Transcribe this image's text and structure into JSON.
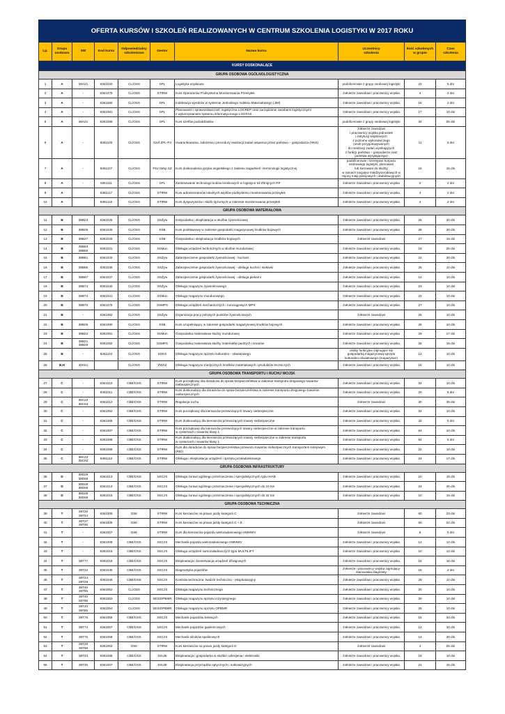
{
  "title": "OFERTA KURSÓW I SZKOLEŃ REALIZOWANYCH W CENTRUM SZKOLENIA LOGISTYKI W 2017 ROKU",
  "columns": [
    "Lp.",
    "Grupa\nosobowa",
    "SW",
    "Kod kursu",
    "Odpowiedzialny\nszkoleniowo",
    "Gestor",
    "Nazwa kursu",
    "Uczestnicy\nszkolenia",
    "Ilość szkolonych\nw grupie",
    "Czas\nszkolenia"
  ],
  "category": "KURSY DOSKONALĄCE",
  "colors": {
    "navy": "#0b2a66",
    "header_yellow": "#ffc000",
    "group_grey": "#d9d9d9"
  },
  "sections": [
    {
      "title": "GRUPA OSOBOWA OGÓLNOLOGISTYCZNA",
      "rows": [
        [
          "1",
          "A",
          "38A21",
          "8361020",
          "CL/OSS",
          "SPL",
          "Logistyka wojskowa",
          "podoficerowie z grupy osobowej logistyki",
          "22",
          "5 dni"
        ],
        [
          "2",
          "A",
          "-",
          "8361079",
          "CL/OSS",
          "STIRW",
          "Kurs Operatorów Podsystemu Monitorowania Przesyłek",
          "żołnierze zawodowi i pracownicy wojska",
          "4",
          "2 dni"
        ],
        [
          "3",
          "A",
          "-",
          "8361080",
          "CL/OSS",
          "SPL",
          "Indeksacja wyrobów w systemie Jednolitego Indeksu Materiałowego (JIM)",
          "żołnierze zawodowi i pracownicy wojska",
          "18",
          "2 dni"
        ],
        [
          "4",
          "A",
          "-",
          "8361081",
          "CL/OSS",
          "SPL",
          "Planowanie i sprawozdawczość logistyczna LOGREP oraz zarządzanie zasobami logistycznymi\nz wykorzystaniem systemu informatycznego LOGFAS",
          "żołnierze zawodowi i pracownicy wojska",
          "17",
          "10 dni"
        ],
        [
          "5",
          "A",
          "38A21",
          "8361089",
          "CL/OSS",
          "SPL",
          "Kurs szefów pododdziałów",
          "podoficerowie z grupy osobowej logistyki",
          "34",
          "25 dni"
        ],
        [
          "6",
          "A",
          "-",
          "8361100",
          "CL/OSS",
          "Szef ZPL-P4",
          "Uwarunkowania, założenia i procedury realizacji zadań wsparcia przez państwo – gospodarza (HNS)",
          "żołnierze zawodowi\ni pracownicy wojska jednostek\ni instytucji wojskowych\nz poziomu wykonawczego\n(osób przygotowywanych\ndo realizacji zadań wynikających\nz funkcji państwa – gospodarza oraz\npaństwa wysyłającego)",
          "11",
          "5 dni"
        ],
        [
          "7",
          "A",
          "-",
          "8361107",
          "CL/OSS",
          "PSz IWsp SZ",
          "Kurs doskonalenia języka angielskiego z zakresu zagadnień i terminologii logistycznej",
          "podoficerowie i szeregowi korpusu\nosobowego logistyki, planowani\nlub kierowani do służby\nw ramach inicjatyw międzynarodowych w\nrejony misji pokojowych i stabilizacyjnych",
          "16",
          "15 dni"
        ],
        [
          "8",
          "A",
          "-",
          "8361111",
          "CL/OSS",
          "SPL",
          "Zastosowanie technologii kodów kreskowych w logistyce Sił Zbrojnych RP",
          "żołnierze zawodowi i pracownicy wojska",
          "2",
          "2 dni"
        ],
        [
          "9",
          "A",
          "",
          "8361117",
          "CL/OSS",
          "STIRW",
          "Kurs administratorów lokalnych węzłów podsystemu monitorowania przesyłek",
          "żołnierze zawodowi i pracownicy wojska",
          "4",
          "2 dni"
        ],
        [
          "10",
          "A",
          "",
          "8361118",
          "CL/OSS",
          "STIRW",
          "Kurs dyspozytorów i służb dyżurnych w zakresie monitorowania przesyłek",
          "żołnierze zawodowi i pracownicy wojska",
          "4",
          "2 dni"
        ]
      ]
    },
    {
      "title": "GRUPA OSOBOWA MATERIAŁOWA",
      "rows": [
        [
          "11",
          "B",
          "38B23",
          "8361025",
          "CL/OSS",
          "SSŻyw",
          "Gospodarka i eksploatacja w służbie żywnościowej",
          "żołnierze zawodowi i pracownicy wojska",
          "25",
          "20 dni"
        ],
        [
          "12",
          "B",
          "38B25",
          "8361026",
          "CL/OSS",
          "SŚB",
          "Kurs podstawowy w zakresie gospodarki magazynowej środków bojowych",
          "żołnierze zawodowi i pracownicy wojska",
          "28",
          "20 dni"
        ],
        [
          "13",
          "B",
          "38B27",
          "8361028",
          "CL/OSS",
          "SŚB",
          "Gospodarka i eksploatacja środków bojowych",
          "żołnierze zawodowi",
          "27",
          "15 dni"
        ],
        [
          "14",
          "B",
          "38B63\n38B68",
          "8361031",
          "CL/OSS",
          "SSMun",
          "Obsługa urządzeń technicznych w służbie mundurowej",
          "żołnierze zawodowi i pracownicy wojska",
          "19",
          "25 dni"
        ],
        [
          "15",
          "B",
          "38B61",
          "8361033",
          "CL/OSS",
          "SSŻyw",
          "Zabezpieczenie gospodarki żywnościowej - kucharz",
          "żołnierze zawodowi i pracownicy wojska",
          "22",
          "20 dni"
        ],
        [
          "16",
          "B",
          "38B65",
          "8361036",
          "CL/OSS",
          "SSŻyw",
          "Zabezpieczenie gospodarki żywnościowej - obsługa kuchni i stołówki",
          "żołnierze zawodowi i pracownicy wojska",
          "26",
          "10 dni"
        ],
        [
          "17",
          "B",
          "38B67",
          "8361037",
          "CL/OSS",
          "SSŻyw",
          "Zabezpieczenie gospodarki żywnościowej - obsługa piekarni",
          "żołnierze zawodowi i pracownicy wojska",
          "14",
          "10 dni"
        ],
        [
          "18",
          "B",
          "38B74",
          "8361040",
          "CL/OSS",
          "SSŻyw",
          "Obsługa magazynu żywnościowego",
          "żołnierze zawodowi i pracownicy wojska",
          "23",
          "10 dni"
        ],
        [
          "19",
          "B",
          "38B74",
          "8361041",
          "CL/OSS",
          "SSMun",
          "Obsługa magazynu mundurowego",
          "żołnierze zawodowi i pracownicy wojska",
          "22",
          "10 dni"
        ],
        [
          "20",
          "B",
          "38B70",
          "8361076",
          "CL/OSS",
          "SSMPS",
          "Obsługa urządzeń mechanicznych i rurociągowych MPS",
          "żołnierze zawodowi i pracownicy wojska",
          "27",
          "10 dni"
        ],
        [
          "21",
          "B",
          "-",
          "8361082",
          "CL/OSS",
          "SSŻyw",
          "Organizacja pracy polowych punktów żywnościowych",
          "żołnierze zawodowi",
          "25",
          "10 dni"
        ],
        [
          "22",
          "B",
          "38B25",
          "8361090",
          "CL/OSS",
          "SŚB",
          "Kurs uzupełniający w zakresie gospodarki magazynowej środków bojowych",
          "żołnierze zawodowi i pracownicy wojska",
          "26",
          "10 dni"
        ],
        [
          "23",
          "B",
          "38B22",
          "8361091",
          "CL/OSS",
          "SSMun",
          "Gospodarka materiałowa służby mundurowej",
          "żołnierze zawodowi i pracownicy wojska",
          "29",
          "17 dni"
        ],
        [
          "24",
          "B",
          "38B21\n38B28",
          "8361092",
          "CL/OSS",
          "SSMPS",
          "Gospodarka materiałowa służby materiałów pędnych i smarów",
          "żołnierze zawodowi i pracownicy wojska",
          "25",
          "15 dni"
        ],
        [
          "25",
          "B",
          "-",
          "8361104",
          "CL/OSS",
          "SOKS",
          "Obsługa magazynu sprzętu kulturalno - oświatowego",
          "osoby funkcyjne zajmujące się\ngospodarką magazynową sprzętu\nkulturalno-oświatowego (magazynier)",
          "12",
          "10 dni"
        ],
        [
          "26",
          "B,H",
          "40H21",
          "",
          "CL/OSS",
          "ZWSZ",
          "Obsługa magazynu medycznych środków materiałowych i produktów leczniczych",
          "żołnierze zawodowi i pracownicy wojska",
          "15",
          "10 dni"
        ]
      ]
    },
    {
      "title": "GRUPA OSOBOWA TRANSPORTU I RUCHU WOJSK",
      "rows": [
        [
          "27",
          "C",
          "-",
          "8361010",
          "CBE/OSS",
          "STIRW",
          "Kurs początkowy dla doradców do spraw bezpieczeństwa w zakresie transportu drogowego towarów\nniebezpiecznych",
          "żołnierze zawodowi i pracownicy wojska",
          "32",
          "10 dni"
        ],
        [
          "28",
          "C",
          "-",
          "8361011",
          "CBE/OSS",
          "STIRW",
          "Kurs doskonalący dla doradców do spraw bezpieczeństwa w zakresie transportu drogowego towarów\nniebezpiecznych",
          "żołnierze zawodowi i pracownicy wojska",
          "20",
          "5 dni"
        ],
        [
          "29",
          "C",
          "38C22\n38C63",
          "8361012",
          "CBE/OSS",
          "STIRW",
          "Regulacja ruchu",
          "żołnierze zawodowi",
          "30",
          "35 dni"
        ],
        [
          "30",
          "C",
          "-",
          "8361064",
          "CBE/OSS",
          "STIRW",
          "Kurs początkowy dla kierowców przewożących towary niebezpieczne",
          "żołnierze zawodowi i pracownicy wojska",
          "32",
          "10 dni"
        ],
        [
          "31",
          "C",
          "-",
          "8361065",
          "CBE/OSS",
          "STIRW",
          "Kurs doskonalący dla kierowców przewożących towary niebezpieczne",
          "żołnierze zawodowi i pracownicy wojska",
          "32",
          "5 dni"
        ],
        [
          "32",
          "C",
          "-",
          "8361087",
          "CBE/OSS",
          "STIRW",
          "Kurs początkowy dla kierowców przewożących towary niebezpieczne w zakresie transportu\nw cysternach i towarów klasy 1",
          "żołnierze zawodowi i pracownicy wojska",
          "64",
          "10 dni"
        ],
        [
          "33",
          "C",
          "-",
          "8361088",
          "CBE/OSS",
          "STIRW",
          "Kurs doskonalący dla kierowców przewożących towary niebezpieczne w zakresie transportu\nw cysternach i towarów klasy 1",
          "żołnierze zawodowi i pracownicy wojska",
          "64",
          "5 dni"
        ],
        [
          "34",
          "C",
          "-",
          "8361099",
          "CBE/OSS",
          "STIRW",
          "Kurs dla doradców do spraw bezpieczeństwa przewozu towarów niebezpiecznych transportem kolejowym\n(RID)",
          "żołnierze zawodowi i pracownicy wojska",
          "22",
          "10 dni"
        ],
        [
          "35",
          "C",
          "38C23\n38C62",
          "8361113",
          "CBE/OSS",
          "STIRW",
          "Obsługa i eksploatacja urządzeń i sprzętu przeładunkowego",
          "żołnierze zawodowi i pracownicy wojska",
          "24",
          "17 dni"
        ]
      ]
    },
    {
      "title": "GRUPA OSOBOWA INFRASTRUKTURY",
      "rows": [
        [
          "36",
          "D",
          "38D28\n38D69",
          "8361013",
          "CBE/OSS",
          "SSCzS",
          "Obsługa żurawi ogólnego przeznaczenia i specjalistycznych typu HIAB",
          "żołnierze zawodowi i pracownicy wojska",
          "10",
          "15 dni"
        ],
        [
          "37",
          "D",
          "38D28\n38D69",
          "8361014",
          "CBE/OSS",
          "SSCzS",
          "Obsługa żurawi ogólnego przeznaczenia i specjalistycznych do 10 ton",
          "żołnierze zawodowi i pracownicy wojska",
          "24",
          "26 dni"
        ],
        [
          "38",
          "D",
          "38D28\n38D69",
          "8361015",
          "CBE/OSS",
          "SSCzS",
          "Obsługa żurawi ogólnego przeznaczenia i specjalistycznych do 32 ton",
          "żołnierze zawodowi i pracownicy wojska",
          "10",
          "15 dni"
        ]
      ]
    },
    {
      "title": "GRUPA OSOBOWA TECHNICZNA",
      "rows": [
        [
          "39",
          "T",
          "38T26\n38T64",
          "8361005",
          "OSK",
          "STIRW",
          "Kurs kierowców na prawo jazdy kategorii C",
          "żołnierze zawodowi",
          "60",
          "23 dni"
        ],
        [
          "40",
          "T",
          "38T27\n38T65",
          "8361006",
          "OSK",
          "STIRW",
          "Kurs kierowców na prawo jazdy kategorii C + E",
          "żołnierze zawodowi",
          "50",
          "22 dni"
        ],
        [
          "41",
          "T",
          "-",
          "8361007",
          "OSK",
          "STIRW",
          "Kurs dla kierowców pojazdu wielozadaniowego HMMWV",
          "żołnierze zawodowi",
          "6",
          "5 dni"
        ],
        [
          "42",
          "T",
          "-",
          "8361008",
          "CBE/OSS",
          "SSCzS",
          "Mechanik pojazdu wielozadaniowego HMMWV",
          "żołnierze zawodowi i pracownicy wojska",
          "12",
          "12 dni"
        ],
        [
          "43",
          "T",
          "-",
          "8361016",
          "CBE/OSS",
          "SSCzS",
          "Obsługa urządzeń samozaładowczych typu MULTILIFT",
          "żołnierze zawodowi i pracownicy wojska",
          "10",
          "12 dni"
        ],
        [
          "44",
          "T",
          "38T77",
          "8361018",
          "CBE/OSS",
          "SSCzS",
          "Eksploatacja i konserwacja urządzeń dźwigowych",
          "żołnierze zawodowi i pracownicy wojska",
          "15",
          "16 dni"
        ],
        [
          "45",
          "T",
          "38T22",
          "8361045",
          "CBE/OSS",
          "SSCzS",
          "Diagnostyka pojazdów",
          "żołnierze i pracownicy wojska zajmujący\nstanowiska diagnosty",
          "15",
          "2 dni"
        ],
        [
          "46",
          "T",
          "38T23\n38T29",
          "8361046",
          "CBE/OSS",
          "SSCzS",
          "Kontrola techniczna. Nadzór techniczno - eksploatacyjny",
          "żołnierze zawodowi i pracownicy wojska",
          "28",
          "10 dni"
        ],
        [
          "47",
          "T",
          "38T40\n38T85",
          "8361052",
          "CL/OSS",
          "SSCzS",
          "Obsługa magazynu technicznego",
          "żołnierze zawodowi i pracownicy wojska",
          "20",
          "10 dni"
        ],
        [
          "48",
          "T",
          "38T40\n38T85",
          "8361053",
          "CL/OSS",
          "SESIOPBMR",
          "Obsługa magazynu sprzętu inżynieryjnego",
          "żołnierze zawodowi i pracownicy wojska",
          "30",
          "10 dni"
        ],
        [
          "49",
          "T",
          "38T40\n38T85",
          "8361054",
          "CL/OSS",
          "SESIOPBMR",
          "Obsługa magazynu sprzętu OPBMR",
          "żołnierze zawodowi i pracownicy wojska",
          "25",
          "10 dni"
        ],
        [
          "50",
          "T",
          "38T75",
          "8361056",
          "CBE/OSS",
          "SSCzS",
          "Mechanik pojazdów kołowych",
          "żołnierze zawodowi i pracownicy wojska",
          "15",
          "33 dni"
        ],
        [
          "51",
          "T",
          "38T74",
          "8361057",
          "CBE/OSS",
          "SSCzS",
          "Mechanik pojazdów gąsienicowych",
          "żołnierze zawodowi i pracownicy wojska",
          "12",
          "33 dni"
        ],
        [
          "52",
          "T",
          "38T76",
          "8361058",
          "CBE/OSS",
          "SSCzS",
          "Mechanik silników spalinowych",
          "żołnierze zawodowi i pracownicy wojska",
          "14",
          "20 dni"
        ],
        [
          "53",
          "T",
          "38T28\n38T68",
          "8361063",
          "OSK",
          "STIRW",
          "Kurs kierowców na prawo jazdy kategorii D",
          "żołnierze zawodowi",
          "4",
          "25 dni"
        ],
        [
          "54",
          "T",
          "38T33",
          "8361066",
          "CBE/OSS",
          "SSUiE",
          "Eksploatacja i gospodarka w służbie uzbrojenia i elektroniki",
          "żołnierze zawodowi i pracownicy wojska",
          "19",
          "10 dni"
        ],
        [
          "55",
          "T",
          "38T35",
          "8361067",
          "CBE/OSS",
          "SSUiE",
          "Eksploatacja przyrządów optycznych i noktowizyjnych",
          "żołnierze zawodowi i pracownicy wojska",
          "21",
          "15 dni"
        ]
      ]
    }
  ]
}
